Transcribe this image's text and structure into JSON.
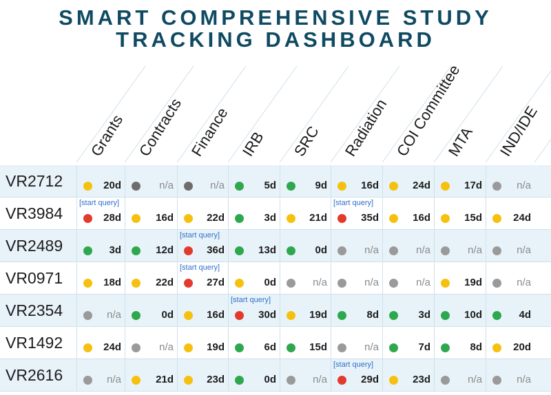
{
  "title": {
    "line1": "SMART COMPREHENSIVE STUDY",
    "line2": "TRACKING DASHBOARD"
  },
  "columns": [
    "Grants",
    "Contracts",
    "Finance",
    "IRB",
    "SRC",
    "Radiation",
    "COI Committee",
    "MTA",
    "IND/IDE"
  ],
  "colors": {
    "green": "#2ea84f",
    "yellow": "#f6c10e",
    "red": "#e23b2e",
    "gray": "#9a9a9a",
    "darkgray": "#6d6d6d"
  },
  "query_label": "[start query]",
  "rows": [
    {
      "id": "VR2712",
      "cells": [
        {
          "s": "yellow",
          "v": "20d"
        },
        {
          "s": "darkgray",
          "v": "n/a"
        },
        {
          "s": "darkgray",
          "v": "n/a"
        },
        {
          "s": "green",
          "v": "5d"
        },
        {
          "s": "green",
          "v": "9d"
        },
        {
          "s": "yellow",
          "v": "16d"
        },
        {
          "s": "yellow",
          "v": "24d"
        },
        {
          "s": "yellow",
          "v": "17d"
        },
        {
          "s": "gray",
          "v": "n/a"
        }
      ]
    },
    {
      "id": "VR3984",
      "cells": [
        {
          "s": "red",
          "v": "28d",
          "q": true
        },
        {
          "s": "yellow",
          "v": "16d"
        },
        {
          "s": "yellow",
          "v": "22d"
        },
        {
          "s": "green",
          "v": "3d"
        },
        {
          "s": "yellow",
          "v": "21d"
        },
        {
          "s": "red",
          "v": "35d",
          "q": true
        },
        {
          "s": "yellow",
          "v": "16d"
        },
        {
          "s": "yellow",
          "v": "15d"
        },
        {
          "s": "yellow",
          "v": "24d"
        }
      ]
    },
    {
      "id": "VR2489",
      "cells": [
        {
          "s": "green",
          "v": "3d"
        },
        {
          "s": "green",
          "v": "12d"
        },
        {
          "s": "red",
          "v": "36d",
          "q": true
        },
        {
          "s": "green",
          "v": "13d"
        },
        {
          "s": "green",
          "v": "0d"
        },
        {
          "s": "gray",
          "v": "n/a"
        },
        {
          "s": "gray",
          "v": "n/a"
        },
        {
          "s": "gray",
          "v": "n/a"
        },
        {
          "s": "gray",
          "v": "n/a"
        }
      ]
    },
    {
      "id": "VR0971",
      "cells": [
        {
          "s": "yellow",
          "v": "18d"
        },
        {
          "s": "yellow",
          "v": "22d"
        },
        {
          "s": "red",
          "v": "27d",
          "q": true
        },
        {
          "s": "yellow",
          "v": "0d"
        },
        {
          "s": "gray",
          "v": "n/a"
        },
        {
          "s": "gray",
          "v": "n/a"
        },
        {
          "s": "gray",
          "v": "n/a"
        },
        {
          "s": "yellow",
          "v": "19d"
        },
        {
          "s": "gray",
          "v": "n/a"
        }
      ]
    },
    {
      "id": "VR2354",
      "cells": [
        {
          "s": "gray",
          "v": "n/a"
        },
        {
          "s": "green",
          "v": "0d"
        },
        {
          "s": "yellow",
          "v": "16d"
        },
        {
          "s": "red",
          "v": "30d",
          "q": true
        },
        {
          "s": "yellow",
          "v": "19d"
        },
        {
          "s": "green",
          "v": "8d"
        },
        {
          "s": "green",
          "v": "3d"
        },
        {
          "s": "green",
          "v": "10d"
        },
        {
          "s": "green",
          "v": "4d"
        }
      ]
    },
    {
      "id": "VR1492",
      "cells": [
        {
          "s": "yellow",
          "v": "24d"
        },
        {
          "s": "gray",
          "v": "n/a"
        },
        {
          "s": "yellow",
          "v": "19d"
        },
        {
          "s": "green",
          "v": "6d"
        },
        {
          "s": "green",
          "v": "15d"
        },
        {
          "s": "gray",
          "v": "n/a"
        },
        {
          "s": "green",
          "v": "7d"
        },
        {
          "s": "green",
          "v": "8d"
        },
        {
          "s": "yellow",
          "v": "20d"
        }
      ]
    },
    {
      "id": "VR2616",
      "cells": [
        {
          "s": "gray",
          "v": "n/a"
        },
        {
          "s": "yellow",
          "v": "21d"
        },
        {
          "s": "yellow",
          "v": "23d"
        },
        {
          "s": "green",
          "v": "0d"
        },
        {
          "s": "gray",
          "v": "n/a"
        },
        {
          "s": "red",
          "v": "29d",
          "q": true
        },
        {
          "s": "yellow",
          "v": "23d"
        },
        {
          "s": "gray",
          "v": "n/a"
        },
        {
          "s": "gray",
          "v": "n/a"
        }
      ]
    }
  ]
}
